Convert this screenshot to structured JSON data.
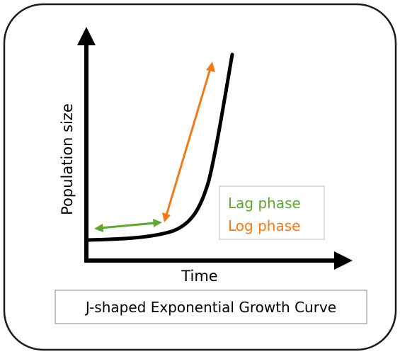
{
  "diagram": {
    "y_axis_label": "Population size",
    "x_axis_label": "Time",
    "legend": [
      {
        "label": "Lag phase",
        "color": "#5fa62e"
      },
      {
        "label": "Log phase",
        "color": "#f07a1a"
      }
    ],
    "caption": "J-shaped Exponential Growth Curve",
    "colors": {
      "curve": "#000000",
      "axes": "#000000",
      "lag": "#5fa62e",
      "log": "#f07a1a",
      "frame": "#1a1a1a",
      "box_border": "#c8c8c8"
    }
  }
}
